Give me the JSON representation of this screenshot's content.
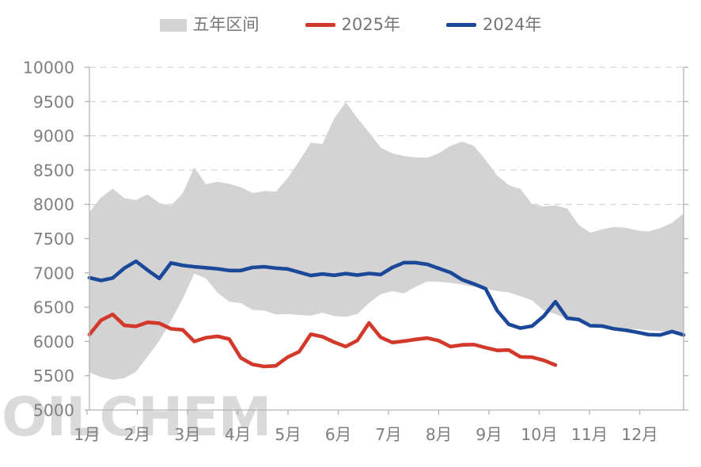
{
  "watermark": "OILCHEM",
  "legend": [
    {
      "label": "五年区间",
      "color": "#d3d3d3",
      "marker": "band"
    },
    {
      "label": "2025年",
      "color": "#d2392b",
      "marker": "line"
    },
    {
      "label": "2024年",
      "color": "#1b4899",
      "marker": "line"
    }
  ],
  "chart_data": {
    "type": "line",
    "title": "",
    "xlabel": "",
    "ylabel": "",
    "legend_position": "top",
    "grid": "dashed horizontal",
    "y_axis": {
      "min": 5000,
      "max": 10000,
      "step": 500,
      "tick_labels": [
        "10000",
        "9500",
        "9000",
        "8500",
        "8000",
        "7500",
        "7000",
        "6500",
        "6000",
        "5500",
        "5000"
      ]
    },
    "x_axis": {
      "labels": [
        "1月",
        "2月",
        "3月",
        "4月",
        "5月",
        "6月",
        "7月",
        "8月",
        "9月",
        "10月",
        "11月",
        "12月"
      ],
      "points_per_year": 52,
      "note": "weekly sampling across one calendar year"
    },
    "series": [
      {
        "name": "五年区间",
        "type": "range_band",
        "color": "#d3d3d3",
        "high": [
          7890,
          8100,
          8230,
          8090,
          8065,
          8145,
          8020,
          7980,
          8160,
          8540,
          8295,
          8330,
          8300,
          8250,
          8165,
          8195,
          8185,
          8380,
          8630,
          8900,
          8880,
          9250,
          9490,
          9260,
          9050,
          8830,
          8745,
          8705,
          8685,
          8680,
          8745,
          8855,
          8915,
          8855,
          8650,
          8420,
          8280,
          8225,
          8000,
          7970,
          7985,
          7940,
          7700,
          7585,
          7635,
          7670,
          7660,
          7620,
          7605,
          7655,
          7730,
          7865
        ],
        "low": [
          5550,
          5480,
          5440,
          5465,
          5560,
          5780,
          6010,
          6300,
          6620,
          6990,
          6920,
          6710,
          6580,
          6560,
          6460,
          6450,
          6395,
          6400,
          6385,
          6375,
          6420,
          6370,
          6360,
          6400,
          6560,
          6690,
          6735,
          6700,
          6800,
          6875,
          6870,
          6855,
          6830,
          6795,
          6770,
          6735,
          6715,
          6660,
          6600,
          6450,
          6400,
          6330,
          6290,
          6268,
          6230,
          6210,
          6182,
          6180,
          6160,
          6150,
          6142,
          6130
        ]
      },
      {
        "name": "2025年",
        "type": "line",
        "color": "#d2392b",
        "values": [
          6100,
          6310,
          6395,
          6235,
          6220,
          6280,
          6265,
          6185,
          6170,
          6000,
          6055,
          6075,
          6035,
          5760,
          5665,
          5635,
          5645,
          5770,
          5850,
          6105,
          6070,
          5990,
          5925,
          6015,
          6270,
          6060,
          5985,
          6005,
          6030,
          6050,
          6010,
          5925,
          5950,
          5955,
          5910,
          5870,
          5875,
          5775,
          5770,
          5725,
          5655
        ]
      },
      {
        "name": "2024年",
        "type": "line",
        "color": "#1b4899",
        "values": [
          6930,
          6890,
          6925,
          7070,
          7170,
          7040,
          6920,
          7145,
          7110,
          7090,
          7075,
          7060,
          7035,
          7035,
          7080,
          7090,
          7070,
          7058,
          7010,
          6962,
          6985,
          6965,
          6990,
          6968,
          6992,
          6975,
          7080,
          7150,
          7150,
          7125,
          7065,
          7005,
          6900,
          6840,
          6770,
          6450,
          6250,
          6195,
          6225,
          6370,
          6580,
          6340,
          6320,
          6230,
          6225,
          6185,
          6165,
          6135,
          6100,
          6095,
          6145,
          6095
        ]
      }
    ]
  }
}
